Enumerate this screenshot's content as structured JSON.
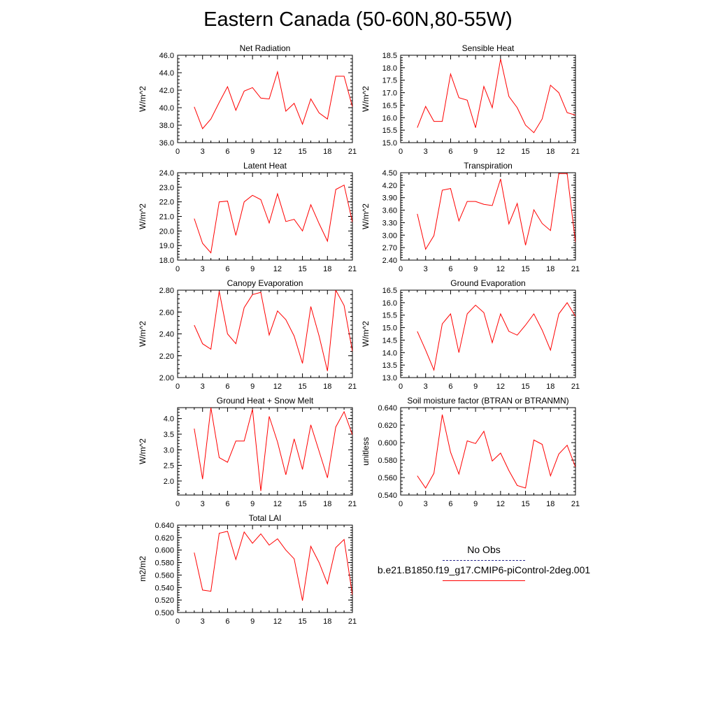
{
  "page_title": "Eastern Canada (50-60N,80-55W)",
  "legend": {
    "entries": [
      {
        "label": "No Obs",
        "color": "#2a2a8c",
        "style": "dashed"
      },
      {
        "label": "b.e21.B1850.f19_g17.CMIP6-piControl-2deg.001",
        "color": "#ff0000",
        "style": "solid"
      }
    ]
  },
  "chart_data": [
    {
      "type": "line",
      "title": "Net Radiation",
      "ylabel": "W/m^2",
      "xlabel": "",
      "xlim": [
        0,
        21
      ],
      "ylim": [
        36.0,
        46.0
      ],
      "xticks": [
        0,
        3,
        6,
        9,
        12,
        15,
        18,
        21
      ],
      "yticks": [
        "36.0",
        "38.0",
        "40.0",
        "42.0",
        "44.0",
        "46.0"
      ],
      "x": [
        2,
        3,
        4,
        5,
        6,
        7,
        8,
        9,
        10,
        11,
        12,
        13,
        14,
        15,
        16,
        17,
        18,
        19,
        20,
        21
      ],
      "series": [
        {
          "color": "#ff0000",
          "values": [
            40.1,
            37.6,
            38.7,
            40.6,
            42.4,
            39.7,
            41.9,
            42.3,
            41.1,
            41.0,
            44.1,
            39.6,
            40.5,
            38.1,
            41.0,
            39.4,
            38.7,
            43.6,
            43.6,
            40.1
          ]
        }
      ]
    },
    {
      "type": "line",
      "title": "Sensible Heat",
      "ylabel": "W/m^2",
      "xlabel": "",
      "xlim": [
        0,
        21
      ],
      "ylim": [
        15.0,
        18.5
      ],
      "xticks": [
        0,
        3,
        6,
        9,
        12,
        15,
        18,
        21
      ],
      "yticks": [
        "15.0",
        "15.5",
        "16.0",
        "16.5",
        "17.0",
        "17.5",
        "18.0",
        "18.5"
      ],
      "x": [
        2,
        3,
        4,
        5,
        6,
        7,
        8,
        9,
        10,
        11,
        12,
        13,
        14,
        15,
        16,
        17,
        18,
        19,
        20,
        21
      ],
      "series": [
        {
          "color": "#ff0000",
          "values": [
            15.6,
            16.45,
            15.85,
            15.85,
            17.75,
            16.8,
            16.7,
            15.6,
            17.25,
            16.4,
            18.35,
            16.85,
            16.4,
            15.7,
            15.4,
            15.95,
            17.3,
            17.0,
            16.2,
            16.1
          ]
        }
      ]
    },
    {
      "type": "line",
      "title": "Latent Heat",
      "ylabel": "W/m^2",
      "xlabel": "",
      "xlim": [
        0,
        21
      ],
      "ylim": [
        18.0,
        24.0
      ],
      "xticks": [
        0,
        3,
        6,
        9,
        12,
        15,
        18,
        21
      ],
      "yticks": [
        "18.0",
        "19.0",
        "20.0",
        "21.0",
        "22.0",
        "23.0",
        "24.0"
      ],
      "x": [
        2,
        3,
        4,
        5,
        6,
        7,
        8,
        9,
        10,
        11,
        12,
        13,
        14,
        15,
        16,
        17,
        18,
        19,
        20,
        21
      ],
      "series": [
        {
          "color": "#ff0000",
          "values": [
            20.85,
            19.15,
            18.5,
            22.0,
            22.05,
            19.7,
            22.0,
            22.45,
            22.15,
            20.55,
            22.55,
            20.65,
            20.8,
            20.0,
            21.8,
            20.5,
            19.3,
            22.85,
            23.15,
            20.6
          ]
        }
      ]
    },
    {
      "type": "line",
      "title": "Transpiration",
      "ylabel": "W/m^2",
      "xlabel": "",
      "xlim": [
        0,
        21
      ],
      "ylim": [
        2.4,
        4.5
      ],
      "xticks": [
        0,
        3,
        6,
        9,
        12,
        15,
        18,
        21
      ],
      "yticks": [
        "2.40",
        "2.70",
        "3.00",
        "3.30",
        "3.60",
        "3.90",
        "4.20",
        "4.50"
      ],
      "x": [
        2,
        3,
        4,
        5,
        6,
        7,
        8,
        9,
        10,
        11,
        12,
        13,
        14,
        15,
        16,
        17,
        18,
        19,
        20,
        21
      ],
      "series": [
        {
          "color": "#ff0000",
          "values": [
            3.51,
            2.66,
            2.99,
            4.08,
            4.12,
            3.34,
            3.81,
            3.81,
            3.74,
            3.71,
            4.35,
            3.27,
            3.76,
            2.76,
            3.61,
            3.28,
            3.11,
            4.48,
            4.48,
            2.83
          ]
        }
      ]
    },
    {
      "type": "line",
      "title": "Canopy Evaporation",
      "ylabel": "W/m^2",
      "xlabel": "",
      "xlim": [
        0,
        21
      ],
      "ylim": [
        2.0,
        2.8
      ],
      "xticks": [
        0,
        3,
        6,
        9,
        12,
        15,
        18,
        21
      ],
      "yticks": [
        "2.00",
        "2.20",
        "2.40",
        "2.60",
        "2.80"
      ],
      "x": [
        2,
        3,
        4,
        5,
        6,
        7,
        8,
        9,
        10,
        11,
        12,
        13,
        14,
        15,
        16,
        17,
        18,
        19,
        20,
        21
      ],
      "series": [
        {
          "color": "#ff0000",
          "values": [
            2.48,
            2.31,
            2.26,
            2.79,
            2.4,
            2.31,
            2.64,
            2.76,
            2.78,
            2.39,
            2.61,
            2.53,
            2.38,
            2.13,
            2.65,
            2.38,
            2.06,
            2.8,
            2.66,
            2.24
          ]
        }
      ]
    },
    {
      "type": "line",
      "title": "Ground Evaporation",
      "ylabel": "W/m^2",
      "xlabel": "",
      "xlim": [
        0,
        21
      ],
      "ylim": [
        13.0,
        16.5
      ],
      "xticks": [
        0,
        3,
        6,
        9,
        12,
        15,
        18,
        21
      ],
      "yticks": [
        "13.0",
        "13.5",
        "14.0",
        "14.5",
        "15.0",
        "15.5",
        "16.0",
        "16.5"
      ],
      "x": [
        2,
        3,
        4,
        5,
        6,
        7,
        8,
        9,
        10,
        11,
        12,
        13,
        14,
        15,
        16,
        17,
        18,
        19,
        20,
        21
      ],
      "series": [
        {
          "color": "#ff0000",
          "values": [
            14.85,
            14.1,
            13.3,
            15.15,
            15.55,
            14.0,
            15.55,
            15.9,
            15.6,
            14.4,
            15.55,
            14.85,
            14.7,
            15.1,
            15.55,
            14.9,
            14.1,
            15.55,
            16.0,
            15.45
          ]
        }
      ]
    },
    {
      "type": "line",
      "title": "Ground Heat + Snow Melt",
      "ylabel": "W/m^2",
      "xlabel": "",
      "xlim": [
        0,
        21
      ],
      "ylim": [
        1.55,
        4.35
      ],
      "xticks": [
        0,
        3,
        6,
        9,
        12,
        15,
        18,
        21
      ],
      "yticks": [
        "2.0",
        "2.5",
        "3.0",
        "3.5",
        "4.0"
      ],
      "x": [
        2,
        3,
        4,
        5,
        6,
        7,
        8,
        9,
        10,
        11,
        12,
        13,
        14,
        15,
        16,
        17,
        18,
        19,
        20,
        21
      ],
      "series": [
        {
          "color": "#ff0000",
          "values": [
            3.68,
            2.06,
            4.35,
            2.75,
            2.6,
            3.28,
            3.28,
            4.3,
            1.68,
            4.07,
            3.25,
            2.2,
            3.35,
            2.37,
            3.8,
            2.95,
            2.1,
            3.73,
            4.22,
            3.48
          ]
        }
      ]
    },
    {
      "type": "line",
      "title": "Soil moisture factor (BTRAN or BTRANMN)",
      "ylabel": "unitless",
      "xlabel": "",
      "xlim": [
        0,
        21
      ],
      "ylim": [
        0.54,
        0.64
      ],
      "xticks": [
        0,
        3,
        6,
        9,
        12,
        15,
        18,
        21
      ],
      "yticks": [
        "0.540",
        "0.560",
        "0.580",
        "0.600",
        "0.620",
        "0.640"
      ],
      "x": [
        2,
        3,
        4,
        5,
        6,
        7,
        8,
        9,
        10,
        11,
        12,
        13,
        14,
        15,
        16,
        17,
        18,
        19,
        20,
        21
      ],
      "series": [
        {
          "color": "#ff0000",
          "values": [
            0.562,
            0.548,
            0.565,
            0.632,
            0.589,
            0.564,
            0.602,
            0.599,
            0.613,
            0.579,
            0.588,
            0.568,
            0.551,
            0.548,
            0.603,
            0.598,
            0.562,
            0.587,
            0.597,
            0.572
          ]
        }
      ]
    },
    {
      "type": "line",
      "title": "Total LAI",
      "ylabel": "m2/m2",
      "xlabel": "",
      "xlim": [
        0,
        21
      ],
      "ylim": [
        0.5,
        0.64
      ],
      "xticks": [
        0,
        3,
        6,
        9,
        12,
        15,
        18,
        21
      ],
      "yticks": [
        "0.500",
        "0.520",
        "0.540",
        "0.560",
        "0.580",
        "0.600",
        "0.620",
        "0.640"
      ],
      "x": [
        2,
        3,
        4,
        5,
        6,
        7,
        8,
        9,
        10,
        11,
        12,
        13,
        14,
        15,
        16,
        17,
        18,
        19,
        20,
        21
      ],
      "series": [
        {
          "color": "#ff0000",
          "values": [
            0.596,
            0.536,
            0.534,
            0.627,
            0.63,
            0.585,
            0.629,
            0.611,
            0.626,
            0.608,
            0.618,
            0.6,
            0.586,
            0.519,
            0.606,
            0.58,
            0.546,
            0.604,
            0.617,
            0.528
          ]
        }
      ]
    }
  ]
}
